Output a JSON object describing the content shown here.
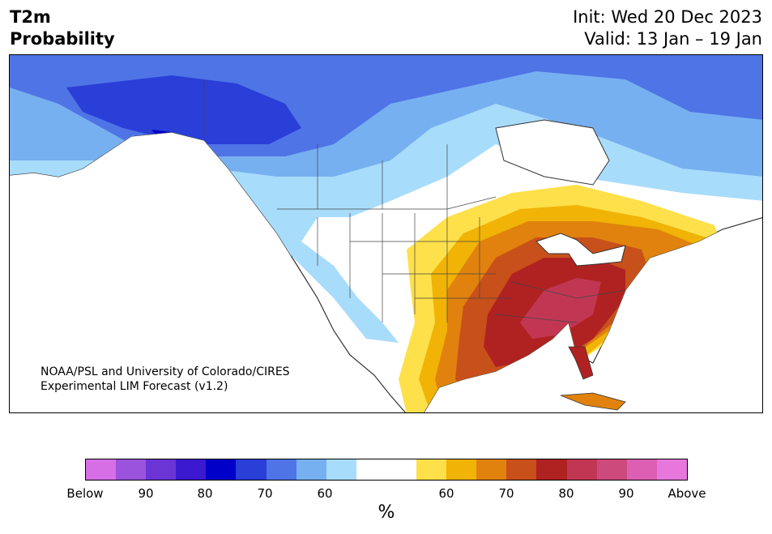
{
  "title": {
    "line1": "T2m",
    "line2": "Probability"
  },
  "init": "Init: Wed 20 Dec 2023",
  "valid": "Valid: 13 Jan – 19 Jan",
  "credit": {
    "line1": "NOAA/PSL and University of Colorado/CIRES",
    "line2": "Experimental LIM Forecast (v1.2)"
  },
  "colorbar": {
    "colors": [
      "#d66fe6",
      "#9b52dd",
      "#6a35d4",
      "#3b19cf",
      "#0000c8",
      "#2a3ed8",
      "#4f74e6",
      "#77b0f0",
      "#a8dcfb",
      "#ffffff",
      "#ffffff",
      "#fee04a",
      "#f0b306",
      "#e0820d",
      "#c8501b",
      "#b02222",
      "#c13753",
      "#cc4b7c",
      "#dd5fb3",
      "#e877dc"
    ],
    "labels": [
      "Below",
      "90",
      "80",
      "70",
      "60",
      "60",
      "70",
      "80",
      "90",
      "Above"
    ],
    "unit": "%"
  },
  "legend_categories": [
    "below-normal probability (blue shades)",
    "above-normal probability (red/orange shades)"
  ]
}
